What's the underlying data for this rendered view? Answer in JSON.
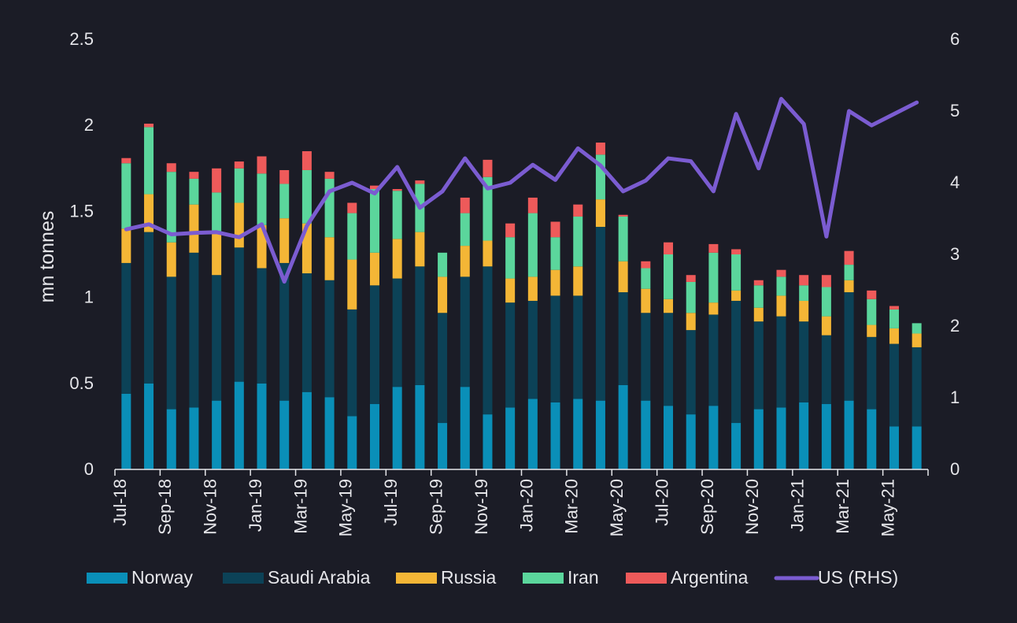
{
  "chart_data": {
    "type": "bar",
    "stacked": true,
    "title": "",
    "ylabel": "mn tonnes",
    "y2label": "",
    "ylim": [
      0,
      2.5
    ],
    "y2lim": [
      0,
      6
    ],
    "yticks": [
      "0",
      "0.5",
      "1",
      "1.5",
      "2",
      "2.5"
    ],
    "y2ticks": [
      "0",
      "1",
      "2",
      "3",
      "4",
      "5",
      "6"
    ],
    "legend_position": "bottom",
    "grid": false,
    "categories": [
      "Jul-18",
      "Aug-18",
      "Sep-18",
      "Oct-18",
      "Nov-18",
      "Dec-18",
      "Jan-19",
      "Feb-19",
      "Mar-19",
      "Apr-19",
      "May-19",
      "Jun-19",
      "Jul-19",
      "Aug-19",
      "Sep-19",
      "Oct-19",
      "Nov-19",
      "Dec-19",
      "Jan-20",
      "Feb-20",
      "Mar-20",
      "Apr-20",
      "May-20",
      "Jun-20",
      "Jul-20",
      "Aug-20",
      "Sep-20",
      "Oct-20",
      "Nov-20",
      "Dec-20",
      "Jan-21",
      "Feb-21",
      "Mar-21",
      "Apr-21",
      "May-21",
      "Jun-21"
    ],
    "x_tick_labels": [
      "Jul-18",
      "",
      "Sep-18",
      "",
      "Nov-18",
      "",
      "Jan-19",
      "",
      "Mar-19",
      "",
      "May-19",
      "",
      "Jul-19",
      "",
      "Sep-19",
      "",
      "Nov-19",
      "",
      "Jan-20",
      "",
      "Mar-20",
      "",
      "May-20",
      "",
      "Jul-20",
      "",
      "Sep-20",
      "",
      "Nov-20",
      "",
      "Jan-21",
      "",
      "Mar-21",
      "",
      "May-21",
      ""
    ],
    "series": [
      {
        "name": "Norway",
        "color": "#0a8fb8",
        "values": [
          0.44,
          0.5,
          0.35,
          0.36,
          0.4,
          0.51,
          0.5,
          0.4,
          0.45,
          0.42,
          0.31,
          0.38,
          0.48,
          0.49,
          0.27,
          0.48,
          0.32,
          0.36,
          0.41,
          0.39,
          0.41,
          0.4,
          0.49,
          0.4,
          0.37,
          0.32,
          0.37,
          0.27,
          0.35,
          0.36,
          0.39,
          0.38,
          0.4,
          0.35,
          0.25,
          0.25
        ]
      },
      {
        "name": "Saudi Arabia",
        "color": "#0c4257",
        "values": [
          0.76,
          0.88,
          0.77,
          0.9,
          0.73,
          0.78,
          0.67,
          0.8,
          0.69,
          0.68,
          0.62,
          0.69,
          0.63,
          0.69,
          0.64,
          0.64,
          0.86,
          0.61,
          0.57,
          0.62,
          0.6,
          1.01,
          0.54,
          0.51,
          0.54,
          0.49,
          0.53,
          0.71,
          0.51,
          0.53,
          0.47,
          0.4,
          0.63,
          0.42,
          0.48,
          0.46
        ]
      },
      {
        "name": "Russia",
        "color": "#f4b636",
        "values": [
          0.2,
          0.22,
          0.2,
          0.28,
          0.25,
          0.26,
          0.25,
          0.26,
          0.29,
          0.25,
          0.29,
          0.19,
          0.23,
          0.2,
          0.21,
          0.18,
          0.15,
          0.14,
          0.14,
          0.15,
          0.17,
          0.16,
          0.18,
          0.14,
          0.08,
          0.1,
          0.07,
          0.06,
          0.08,
          0.12,
          0.12,
          0.11,
          0.07,
          0.07,
          0.09,
          0.08
        ]
      },
      {
        "name": "Iran",
        "color": "#5bd69c",
        "values": [
          0.38,
          0.39,
          0.41,
          0.15,
          0.23,
          0.2,
          0.3,
          0.2,
          0.31,
          0.34,
          0.27,
          0.37,
          0.28,
          0.28,
          0.14,
          0.19,
          0.37,
          0.24,
          0.37,
          0.19,
          0.29,
          0.26,
          0.26,
          0.12,
          0.26,
          0.18,
          0.29,
          0.21,
          0.13,
          0.11,
          0.09,
          0.17,
          0.09,
          0.15,
          0.11,
          0.06
        ]
      },
      {
        "name": "Argentina",
        "color": "#ee5a5a",
        "values": [
          0.03,
          0.02,
          0.05,
          0.04,
          0.14,
          0.04,
          0.1,
          0.08,
          0.11,
          0.04,
          0.06,
          0.02,
          0.01,
          0.02,
          0.0,
          0.09,
          0.1,
          0.08,
          0.09,
          0.09,
          0.07,
          0.07,
          0.01,
          0.04,
          0.07,
          0.04,
          0.05,
          0.03,
          0.03,
          0.04,
          0.06,
          0.07,
          0.08,
          0.05,
          0.02,
          0.0
        ]
      }
    ],
    "line_series": [
      {
        "name": "US (RHS)",
        "color": "#7b5cd1",
        "axis": "right",
        "values": [
          3.35,
          3.42,
          3.28,
          3.3,
          3.31,
          3.24,
          3.42,
          2.62,
          3.4,
          3.88,
          4.0,
          3.85,
          4.22,
          3.65,
          3.88,
          4.34,
          3.92,
          4.0,
          4.25,
          4.04,
          4.48,
          4.24,
          3.88,
          4.03,
          4.34,
          4.3,
          3.88,
          4.96,
          4.2,
          5.17,
          4.82,
          3.25,
          5.0,
          4.8,
          4.96,
          5.12
        ]
      }
    ]
  }
}
